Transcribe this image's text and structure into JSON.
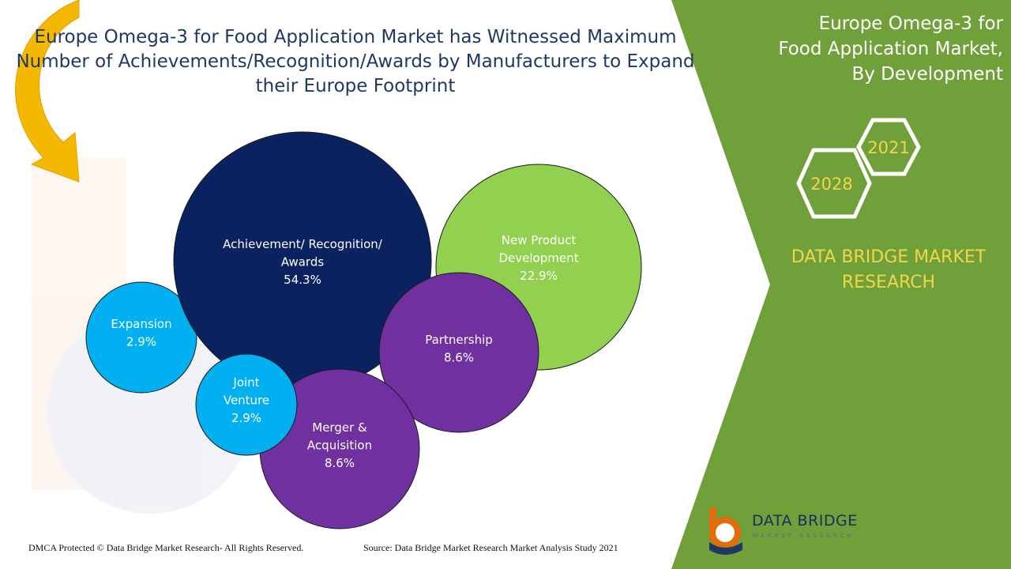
{
  "title": "Europe Omega-3 for Food Application Market has Witnessed Maximum Number of Achievements/Recognition/Awards by Manufacturers to Expand their Europe Footprint",
  "side_panel": {
    "title": "Europe Omega-3 for Food Application Market, By Development",
    "year_start": "2021",
    "year_end": "2028",
    "brand": "DATA BRIDGE MARKET RESEARCH"
  },
  "footer": {
    "copyright": "DMCA Protected © Data Bridge Market Research- All Rights Reserved.",
    "source": "Source: Data Bridge Market Research Market Analysis Study 2021"
  },
  "logo": {
    "name": "DATA BRIDGE",
    "tagline": "MARKET RESEARCH"
  },
  "colors": {
    "green_panel": "#70a03a",
    "navy": "#0b2260",
    "light_green": "#92d050",
    "purple": "#7030a0",
    "cyan": "#00b0f0",
    "gold": "#f2d64a",
    "arrow": "#f5b800"
  },
  "chart_data": {
    "type": "bubble",
    "title": "Europe Omega-3 for Food Application Market has Witnessed Maximum Number of Achievements/Recognition/Awards by Manufacturers to Expand their Europe Footprint",
    "points": [
      {
        "label": "Achievement/ Recognition/ Awards",
        "value": 54.3,
        "display": "54.3%",
        "color": "#0b2260"
      },
      {
        "label": "New Product Development",
        "value": 22.9,
        "display": "22.9%",
        "color": "#92d050"
      },
      {
        "label": "Partnership",
        "value": 8.6,
        "display": "8.6%",
        "color": "#7030a0"
      },
      {
        "label": "Merger & Acquisition",
        "value": 8.6,
        "display": "8.6%",
        "color": "#7030a0"
      },
      {
        "label": "Expansion",
        "value": 2.9,
        "display": "2.9%",
        "color": "#00b0f0"
      },
      {
        "label": "Joint Venture",
        "value": 2.9,
        "display": "2.9%",
        "color": "#00b0f0"
      }
    ]
  }
}
